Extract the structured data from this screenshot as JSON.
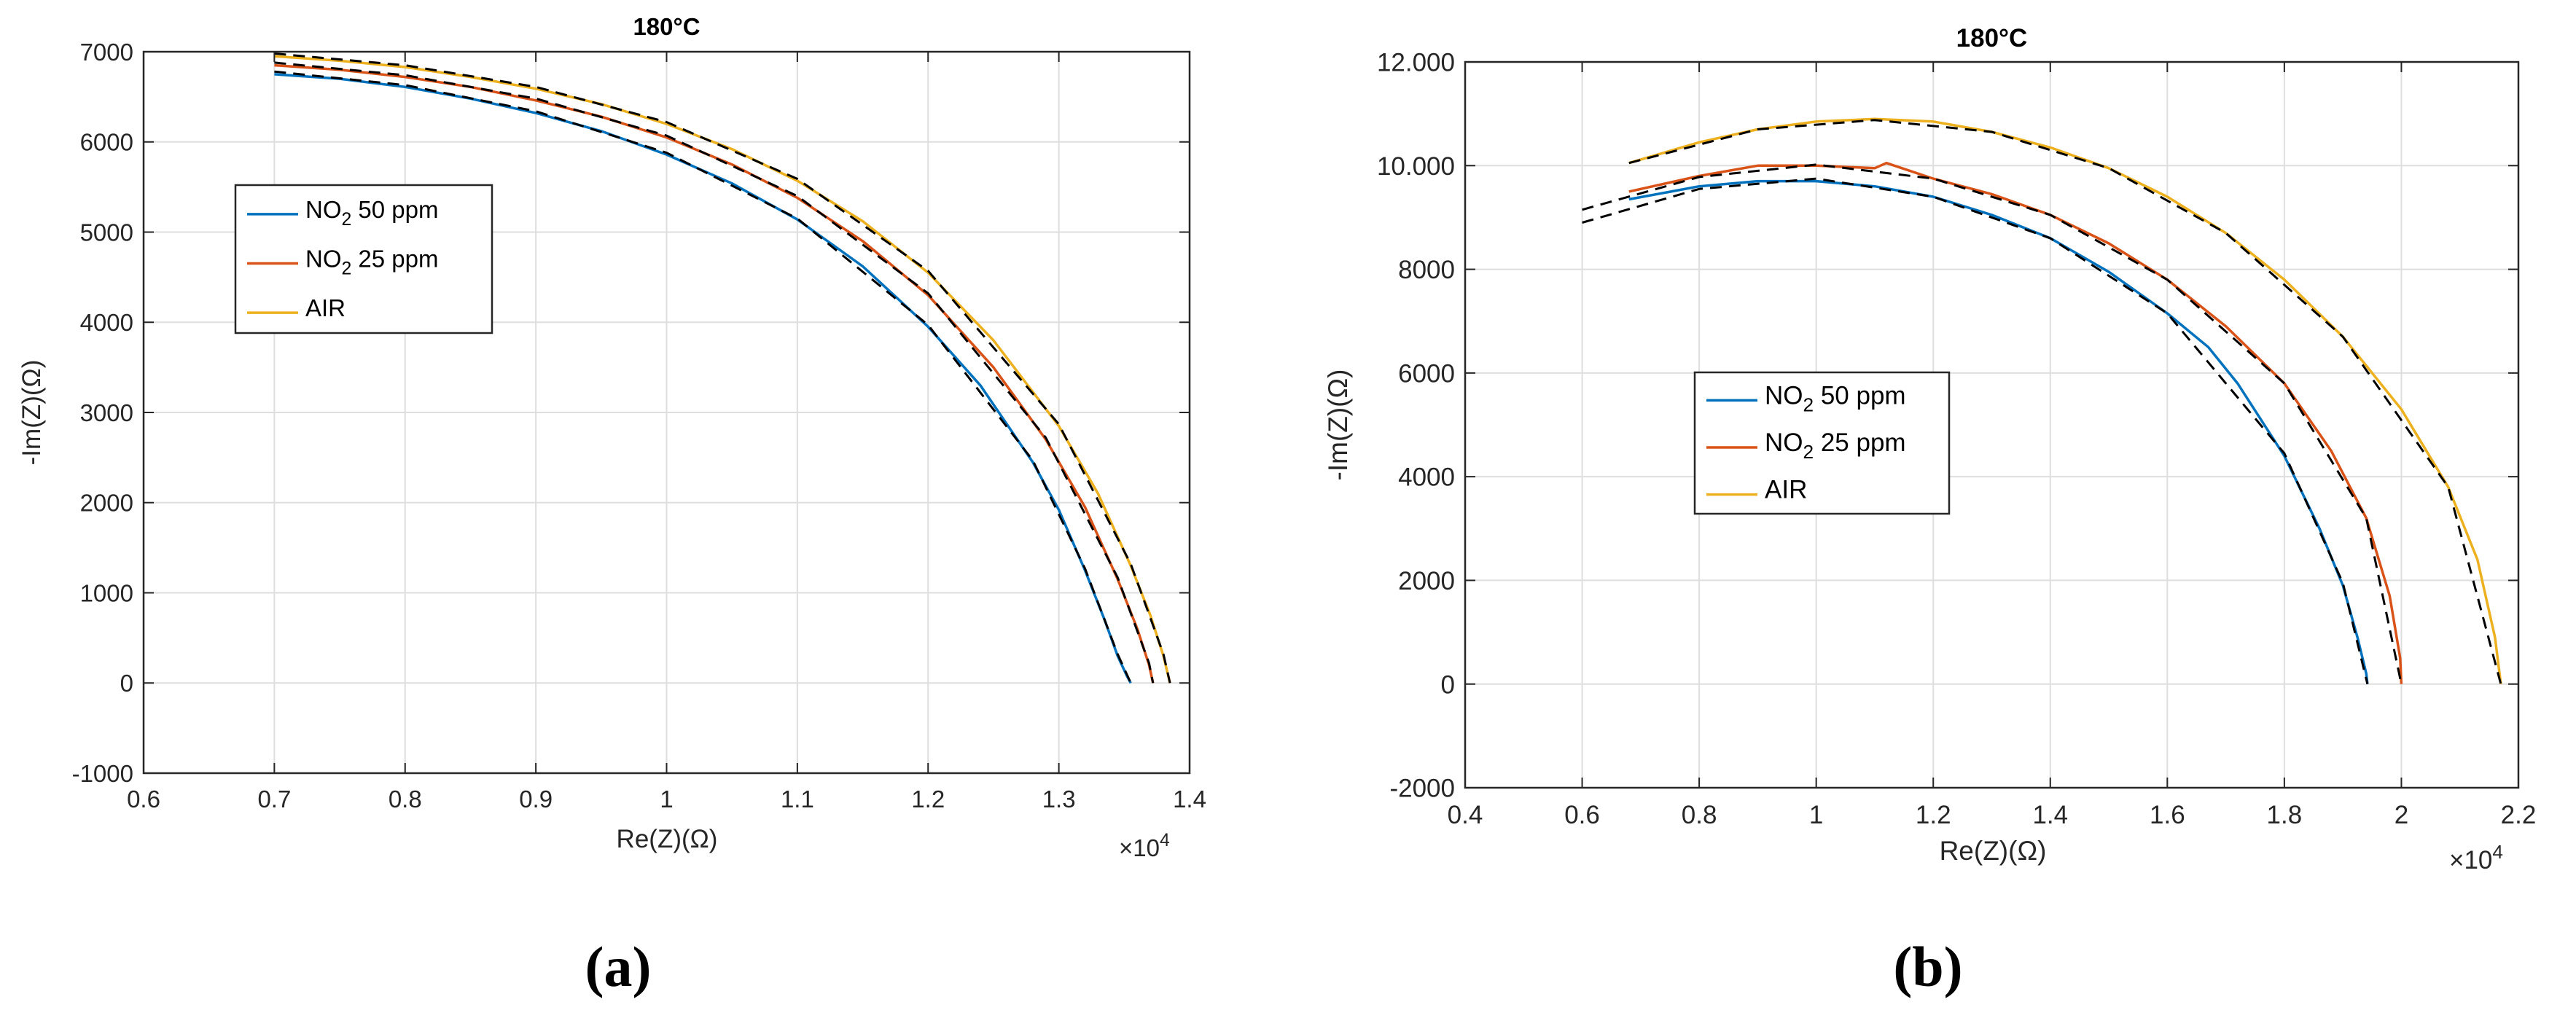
{
  "figure": {
    "label_a": "(a)",
    "label_b": "(b)"
  },
  "chart_data": [
    {
      "type": "line",
      "title": "180°C",
      "xlabel": "Re(Z)(Ω)",
      "ylabel": "-Im(Z)(Ω)",
      "xlim": [
        6000,
        14000
      ],
      "ylim": [
        -1000,
        7000
      ],
      "x_exponent_label": "×10",
      "x_exponent": "4",
      "xticks": [
        6000,
        7000,
        8000,
        9000,
        10000,
        11000,
        12000,
        13000,
        14000
      ],
      "xtick_labels": [
        "0.6",
        "0.7",
        "0.8",
        "0.9",
        "1",
        "1.1",
        "1.2",
        "1.3",
        "1.4"
      ],
      "yticks": [
        -1000,
        0,
        1000,
        2000,
        3000,
        4000,
        5000,
        6000,
        7000
      ],
      "ytick_labels": [
        "-1000",
        "0",
        "1000",
        "2000",
        "3000",
        "4000",
        "5000",
        "6000",
        "7000"
      ],
      "grid": true,
      "legend_position": "upper-left",
      "series": [
        {
          "name_main": "NO",
          "name_sub": "2",
          "name_rest": " 50 ppm",
          "color": "#0072BD",
          "x": [
            7000,
            7500,
            8000,
            8500,
            9000,
            9500,
            10000,
            10500,
            11000,
            11500,
            12000,
            12400,
            12800,
            13000,
            13200,
            13350,
            13450,
            13520,
            13550
          ],
          "y": [
            6750,
            6700,
            6610,
            6480,
            6320,
            6120,
            5860,
            5540,
            5140,
            4620,
            3950,
            3300,
            2450,
            1920,
            1250,
            700,
            300,
            80,
            0
          ]
        },
        {
          "name_main": "NO",
          "name_sub": "2",
          "name_rest": " 25 ppm",
          "color": "#D95319",
          "x": [
            7000,
            7500,
            8000,
            8500,
            9000,
            9500,
            10000,
            10500,
            11000,
            11500,
            12000,
            12500,
            12900,
            13200,
            13450,
            13600,
            13690,
            13720
          ],
          "y": [
            6850,
            6800,
            6720,
            6610,
            6460,
            6280,
            6050,
            5750,
            5380,
            4900,
            4300,
            3500,
            2700,
            1950,
            1150,
            600,
            200,
            0
          ]
        },
        {
          "name_main": "AIR",
          "name_sub": "",
          "name_rest": "",
          "color": "#EDB120",
          "x": [
            7000,
            7500,
            8000,
            8500,
            9000,
            9500,
            10000,
            10500,
            11000,
            11500,
            12000,
            12500,
            13000,
            13300,
            13550,
            13700,
            13800,
            13850
          ],
          "y": [
            6950,
            6900,
            6830,
            6720,
            6590,
            6420,
            6200,
            5920,
            5570,
            5120,
            4550,
            3800,
            2850,
            2100,
            1300,
            750,
            300,
            0
          ]
        }
      ],
      "fits": [
        {
          "label": "fit",
          "x": [
            7000,
            8000,
            9000,
            10000,
            11000,
            12000,
            12800,
            13200,
            13450,
            13550
          ],
          "y": [
            6780,
            6630,
            6340,
            5880,
            5150,
            3970,
            2470,
            1270,
            320,
            0
          ]
        },
        {
          "label": "fit",
          "x": [
            7000,
            8000,
            9000,
            10000,
            11000,
            12000,
            12900,
            13450,
            13690,
            13720
          ],
          "y": [
            6880,
            6740,
            6480,
            6070,
            5400,
            4320,
            2720,
            1170,
            220,
            0
          ]
        },
        {
          "label": "fit",
          "x": [
            7000,
            8000,
            9000,
            10000,
            11000,
            12000,
            13000,
            13550,
            13800,
            13850
          ],
          "y": [
            6980,
            6850,
            6610,
            6220,
            5590,
            4570,
            2870,
            1320,
            320,
            0
          ]
        }
      ]
    },
    {
      "type": "line",
      "title": "180°C",
      "xlabel": "Re(Z)(Ω)",
      "ylabel": "-Im(Z)(Ω)",
      "xlim": [
        4000,
        22000
      ],
      "ylim": [
        -2000,
        12000
      ],
      "x_exponent_label": "×10",
      "x_exponent": "4",
      "xticks": [
        4000,
        6000,
        8000,
        10000,
        12000,
        14000,
        16000,
        18000,
        20000,
        22000
      ],
      "xtick_labels": [
        "0.4",
        "0.6",
        "0.8",
        "1",
        "1.2",
        "1.4",
        "1.6",
        "1.8",
        "2",
        "2.2"
      ],
      "yticks": [
        -2000,
        0,
        2000,
        4000,
        6000,
        8000,
        10000,
        12000
      ],
      "ytick_labels": [
        "-2000",
        "0",
        "2000",
        "4000",
        "6000",
        "8000",
        "10.000",
        "12.000"
      ],
      "grid": true,
      "legend_position": "middle-left",
      "series": [
        {
          "name_main": "NO",
          "name_sub": "2",
          "name_rest": " 50 ppm",
          "color": "#0072BD",
          "x": [
            6800,
            8000,
            9000,
            10000,
            11000,
            12000,
            13000,
            14000,
            15000,
            16000,
            16700,
            17200,
            18000,
            18600,
            19000,
            19250,
            19400,
            19420
          ],
          "y": [
            9350,
            9600,
            9700,
            9700,
            9600,
            9400,
            9050,
            8600,
            7950,
            7150,
            6500,
            5800,
            4400,
            3000,
            1900,
            900,
            200,
            0
          ]
        },
        {
          "name_main": "NO",
          "name_sub": "2",
          "name_rest": " 25 ppm",
          "color": "#D95319",
          "x": [
            6800,
            8000,
            9000,
            10000,
            11000,
            11200,
            12000,
            13000,
            14000,
            15000,
            16000,
            17000,
            18000,
            18800,
            19400,
            19800,
            19980,
            20000
          ],
          "y": [
            9500,
            9800,
            10000,
            10000,
            9950,
            10050,
            9750,
            9450,
            9050,
            8500,
            7800,
            6900,
            5800,
            4500,
            3200,
            1700,
            500,
            0
          ]
        },
        {
          "name_main": "AIR",
          "name_sub": "",
          "name_rest": "",
          "color": "#EDB120",
          "x": [
            6800,
            8000,
            9000,
            10000,
            11000,
            12000,
            13000,
            14000,
            15000,
            16000,
            17000,
            18000,
            19000,
            20000,
            20800,
            21300,
            21600,
            21700
          ],
          "y": [
            10050,
            10450,
            10700,
            10850,
            10900,
            10850,
            10650,
            10350,
            9950,
            9400,
            8700,
            7800,
            6700,
            5300,
            3800,
            2400,
            900,
            0
          ]
        }
      ],
      "fits": [
        {
          "label": "fit",
          "x": [
            6000,
            8000,
            10000,
            12000,
            14000,
            16000,
            18000,
            19000,
            19420
          ],
          "y": [
            8900,
            9550,
            9750,
            9400,
            8600,
            7150,
            4450,
            1950,
            0
          ]
        },
        {
          "label": "fit",
          "x": [
            6000,
            8000,
            10000,
            12000,
            14000,
            16000,
            18000,
            19400,
            20000
          ],
          "y": [
            9150,
            9780,
            10020,
            9750,
            9050,
            7800,
            5800,
            3200,
            0
          ]
        },
        {
          "label": "fit",
          "x": [
            6800,
            9000,
            11000,
            13000,
            15000,
            17000,
            19000,
            20800,
            21700
          ],
          "y": [
            10050,
            10700,
            10880,
            10650,
            9950,
            8700,
            6700,
            3800,
            0
          ]
        }
      ]
    }
  ]
}
